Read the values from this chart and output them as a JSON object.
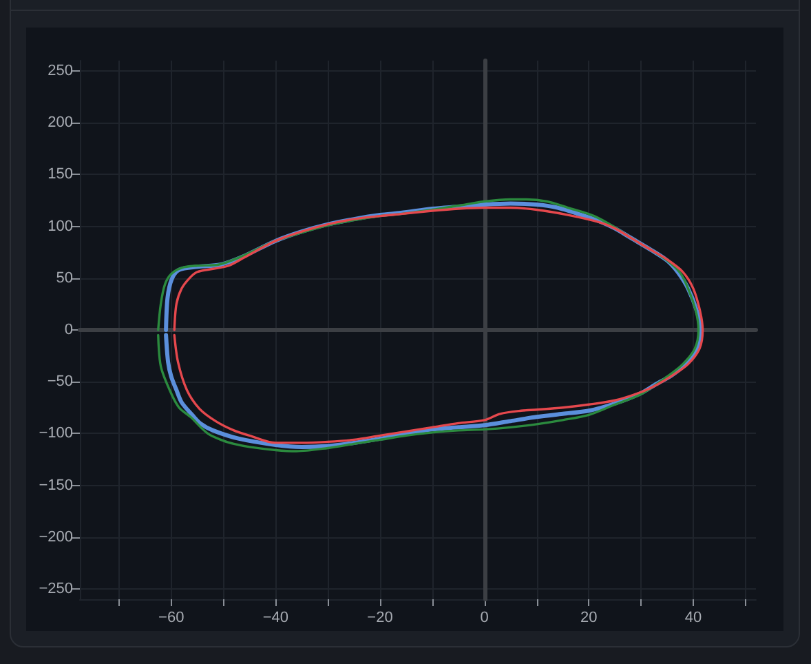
{
  "chart_data": {
    "type": "line",
    "series": [
      {
        "color": "#5b8fdc",
        "x": [
          -61,
          -60.7,
          -59.9,
          -58.5,
          -55,
          -50.6,
          -46.2,
          -40,
          -35,
          -30,
          -25,
          -20,
          -16,
          -10,
          -5,
          0,
          5,
          10,
          14,
          18,
          22,
          25,
          28,
          32,
          35,
          37,
          39,
          40.7,
          41.4,
          40.7,
          38.5,
          35.8,
          33,
          30,
          25,
          20,
          15,
          10,
          5,
          0,
          -5,
          -10,
          -15,
          -20,
          -25,
          -30,
          -35,
          -40,
          -47,
          -52,
          -54.5,
          -56,
          -58,
          -59,
          -60,
          -60.6,
          -61
        ],
        "values": [
          0,
          31,
          49,
          58,
          61,
          63,
          71,
          86,
          95,
          102,
          107,
          111,
          113,
          117,
          119,
          121,
          122,
          121,
          118,
          112,
          105,
          98,
          89,
          77,
          67,
          56,
          40,
          18,
          0,
          -18,
          -33,
          -44,
          -52,
          -61,
          -71,
          -78,
          -81,
          -84,
          -88,
          -92,
          -94,
          -96,
          -100,
          -105,
          -109,
          -112,
          -113,
          -111,
          -105,
          -97,
          -90,
          -82,
          -70,
          -58,
          -45,
          -31,
          -5
        ]
      },
      {
        "color": "#2b8a3e",
        "x": [
          -62.5,
          -62,
          -61.2,
          -60,
          -58,
          -55,
          -51,
          -46.5,
          -40,
          -35,
          -30,
          -25,
          -20,
          -16,
          -10,
          -5,
          0,
          5,
          8,
          12,
          16,
          21,
          25,
          28,
          32,
          35,
          37.5,
          39,
          40.5,
          41,
          40.3,
          38,
          35,
          30,
          25,
          20,
          15,
          10,
          5,
          0,
          -5,
          -10,
          -15,
          -20,
          -25,
          -30,
          -36,
          -40,
          -45,
          -48,
          -50,
          -53,
          -56.3,
          -58.5,
          -60.3,
          -62,
          -62.5
        ],
        "values": [
          0,
          25,
          44,
          54,
          60,
          62,
          63,
          71,
          86,
          94,
          101,
          106,
          110,
          112,
          116,
          120,
          124,
          126,
          126,
          124,
          118,
          110,
          99,
          89,
          77,
          67,
          55,
          40,
          18,
          0,
          -18,
          -33,
          -45,
          -62,
          -72,
          -82,
          -87,
          -91,
          -94,
          -96,
          -97,
          -99,
          -102,
          -106,
          -110,
          -114,
          -117,
          -116,
          -113,
          -110,
          -107,
          -100,
          -84,
          -75,
          -58,
          -35,
          -5
        ]
      },
      {
        "color": "#e5484d",
        "x": [
          -59.4,
          -59,
          -58,
          -56.5,
          -55,
          -52,
          -49,
          -46,
          -40,
          -35,
          -30,
          -25,
          -20,
          -16,
          -10,
          -5,
          0,
          5,
          10,
          16,
          22,
          25,
          28,
          32,
          35,
          38,
          40,
          41.3,
          41.8,
          41.2,
          39,
          36,
          33,
          30,
          25,
          20,
          15,
          10,
          7,
          3,
          0,
          -5,
          -10,
          -15,
          -20,
          -25,
          -30,
          -35,
          -40,
          -45,
          -48,
          -51.5,
          -54.6,
          -57,
          -58.7,
          -59.4
        ],
        "values": [
          0,
          25,
          40,
          50,
          56,
          59,
          62,
          70,
          86,
          95,
          102,
          107,
          110,
          112,
          115,
          117,
          118,
          118,
          116,
          111,
          104,
          98,
          89,
          77,
          68,
          56,
          40,
          18,
          0,
          -18,
          -33,
          -44,
          -53,
          -60,
          -68,
          -72,
          -75,
          -77,
          -78,
          -81,
          -87,
          -90,
          -94,
          -98,
          -102,
          -106,
          -108,
          -109,
          -109,
          -102,
          -97,
          -88,
          -76,
          -58,
          -31,
          -5
        ]
      }
    ],
    "xlim": [
      -77.5,
      52
    ],
    "xticks": [
      {
        "value": -70,
        "label": null
      },
      {
        "value": -60,
        "label": "−60"
      },
      {
        "value": -50,
        "label": null
      },
      {
        "value": -40,
        "label": "−40"
      },
      {
        "value": -30,
        "label": null
      },
      {
        "value": -20,
        "label": "−20"
      },
      {
        "value": -10,
        "label": null
      },
      0,
      {
        "value": 10,
        "label": null
      },
      20,
      {
        "value": 30,
        "label": null
      },
      40,
      {
        "value": 50,
        "label": null
      }
    ],
    "ylim": [
      -260,
      260
    ],
    "yticks": [
      {
        "value": -250,
        "label": "−250"
      },
      {
        "value": -200,
        "label": "−200"
      },
      {
        "value": -150,
        "label": "−150"
      },
      {
        "value": -100,
        "label": "−100"
      },
      {
        "value": -50,
        "label": "−50"
      },
      0,
      50,
      100,
      150,
      200,
      250
    ],
    "grid": true,
    "marker": "none"
  }
}
